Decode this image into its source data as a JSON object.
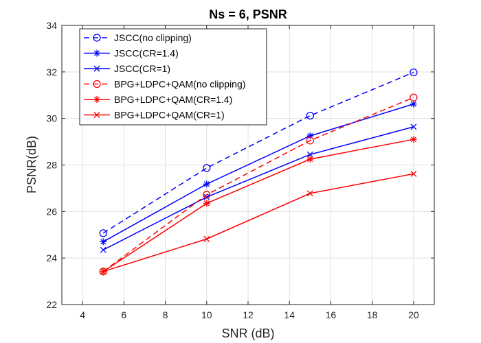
{
  "chart_data": {
    "type": "line",
    "title": "Ns = 6, PSNR",
    "xlabel": "SNR (dB)",
    "ylabel": "PSNR(dB)",
    "xlim": [
      3,
      21
    ],
    "ylim": [
      22,
      34
    ],
    "xticks": [
      4,
      6,
      8,
      10,
      12,
      14,
      16,
      18,
      20
    ],
    "yticks": [
      22,
      24,
      26,
      28,
      30,
      32,
      34
    ],
    "grid": true,
    "legend_position": "top-left",
    "x": [
      5,
      10,
      15,
      20
    ],
    "series": [
      {
        "name": "JSCC(no clipping)",
        "values": [
          25.07,
          27.87,
          30.12,
          31.98
        ],
        "color": "#0000ff",
        "dash": "dashed",
        "marker": "circle"
      },
      {
        "name": "JSCC(CR=1.4)",
        "values": [
          24.7,
          27.18,
          29.25,
          30.62
        ],
        "color": "#0000ff",
        "dash": "solid",
        "marker": "asterisk"
      },
      {
        "name": "JSCC(CR=1)",
        "values": [
          24.35,
          26.62,
          28.45,
          29.64
        ],
        "color": "#0000ff",
        "dash": "solid",
        "marker": "x"
      },
      {
        "name": "BPG+LDPC+QAM(no clipping)",
        "values": [
          23.42,
          26.72,
          29.05,
          30.9
        ],
        "color": "#ff0000",
        "dash": "dashed",
        "marker": "circle"
      },
      {
        "name": "BPG+LDPC+QAM(CR=1.4)",
        "values": [
          23.42,
          26.35,
          28.25,
          29.1
        ],
        "color": "#ff0000",
        "dash": "solid",
        "marker": "asterisk"
      },
      {
        "name": "BPG+LDPC+QAM(CR=1)",
        "values": [
          23.42,
          24.82,
          26.78,
          27.62
        ],
        "color": "#ff0000",
        "dash": "solid",
        "marker": "x"
      }
    ]
  }
}
